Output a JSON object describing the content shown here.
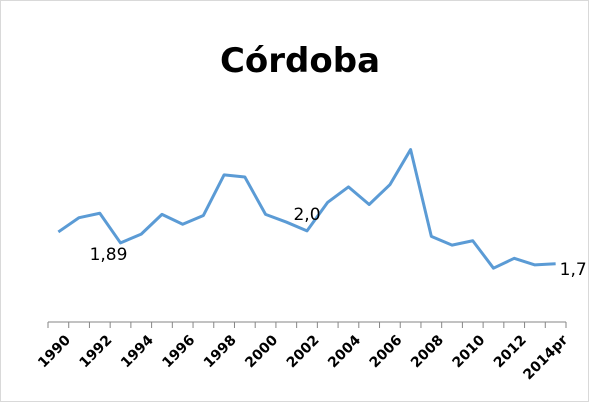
{
  "chart_data": {
    "type": "line",
    "title": "Córdoba",
    "categories": [
      "1990",
      null,
      "1992",
      null,
      "1994",
      null,
      "1996",
      null,
      "1998",
      null,
      "2000",
      null,
      "2002",
      null,
      "2004",
      null,
      "2006",
      null,
      "2008",
      null,
      "2010",
      null,
      "2012",
      null,
      "2014pr"
    ],
    "values": [
      1.99,
      2.12,
      2.16,
      1.89,
      1.97,
      2.15,
      2.06,
      2.14,
      2.51,
      2.49,
      2.15,
      2.08,
      2.0,
      2.26,
      2.4,
      2.24,
      2.42,
      2.74,
      1.95,
      1.87,
      1.91,
      1.66,
      1.75,
      1.69,
      1.7
    ],
    "value_labels": [
      null,
      null,
      null,
      "1,89",
      null,
      null,
      null,
      null,
      null,
      null,
      null,
      null,
      "2,0",
      null,
      null,
      null,
      null,
      null,
      null,
      null,
      null,
      null,
      null,
      null,
      "1,7"
    ],
    "color": "#5b9bd5",
    "ylim": [
      1.17,
      2.9
    ]
  }
}
